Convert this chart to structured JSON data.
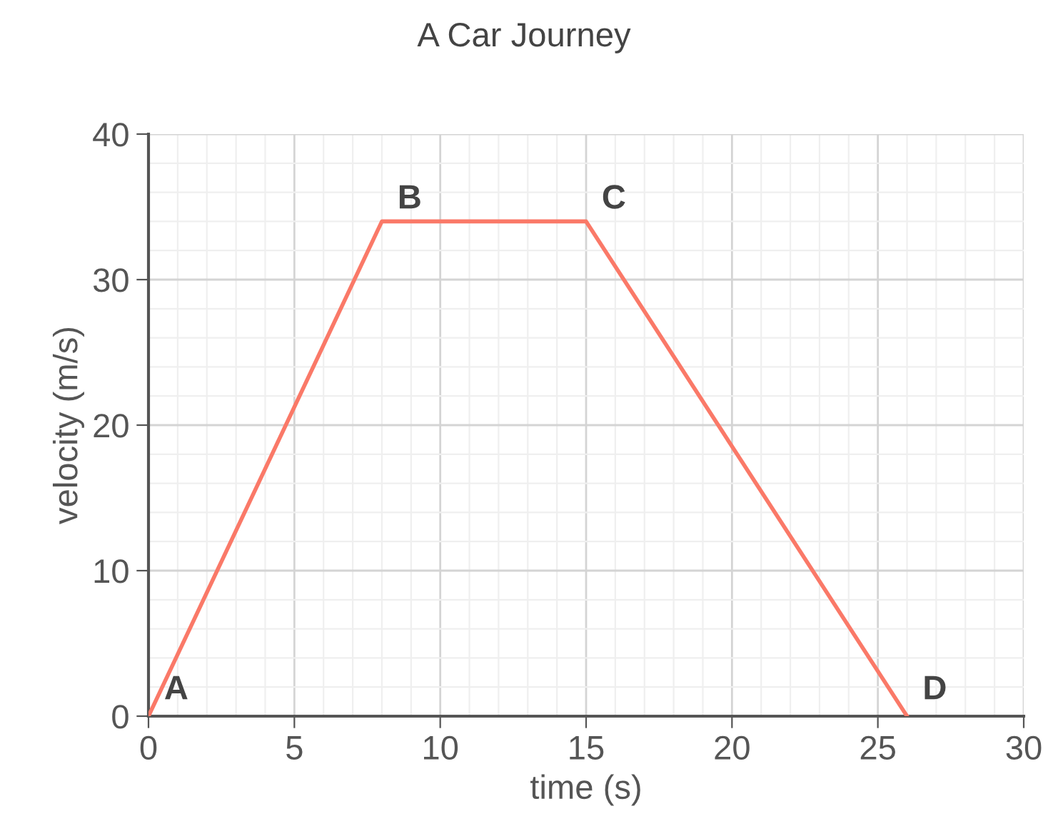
{
  "chart_data": {
    "type": "line",
    "title": "A Car Journey",
    "xlabel": "time (s)",
    "ylabel": "velocity (m/s)",
    "x": [
      0,
      8,
      15,
      26
    ],
    "series": [
      {
        "color": "#fa7968",
        "values": [
          0,
          34,
          34,
          0
        ]
      }
    ],
    "xlim": [
      0,
      30
    ],
    "xticks": [
      0,
      5,
      10,
      15,
      20,
      25,
      30
    ],
    "ylim": [
      0,
      40
    ],
    "yticks": [
      0,
      10,
      20,
      30,
      40
    ],
    "grid": true,
    "marker": "none",
    "line_style": "solid",
    "annotations": [
      {
        "text": "A",
        "x": 0,
        "y": 0
      },
      {
        "text": "B",
        "x": 8,
        "y": 34
      },
      {
        "text": "C",
        "x": 15,
        "y": 34
      },
      {
        "text": "D",
        "x": 26,
        "y": 0
      }
    ]
  }
}
